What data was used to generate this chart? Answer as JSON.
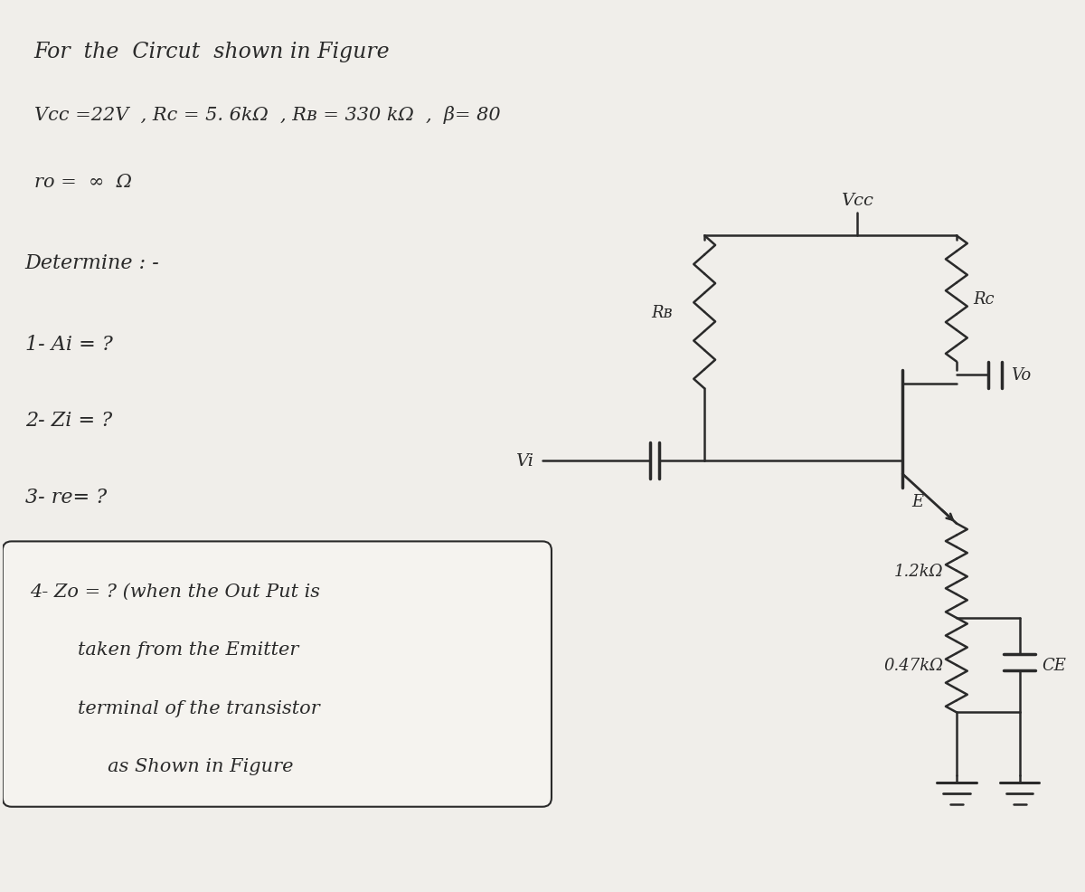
{
  "bg_color": "#f0eeea",
  "paper_color": "#f5f3ef",
  "title_line": "For  the  Circut  shown in Figure",
  "params_line": "Vcc =22V  , Rc = 5. 6kΩ  , Rʙ = 330 kΩ  ,  β= 80",
  "ro_line": "ro =  ∞  Ω",
  "determine_line": "Determine : -",
  "q1": "1- Ai = ?",
  "q2": "2- Zi = ?",
  "q3": "3- re= ?",
  "q4_line1": "4- Zo = ? (when the Out Put is",
  "q4_line2": "        taken from the Emitter",
  "q4_line3": "        terminal of the transistor",
  "q4_line4": "             as Shown in Figure",
  "vcc_label": "Vcc",
  "rb_label": "Rʙ",
  "rc_label": "Rc",
  "re1_label": "1.2kΩ",
  "re2_label": "0.47kΩ",
  "ce_label": "CE",
  "vi_label": "Vi",
  "vo_label": "Vo",
  "e_label": "E",
  "ink_color": "#2a2a2a",
  "title_fs": 17,
  "params_fs": 15,
  "ro_fs": 15,
  "determine_fs": 16,
  "q_fs": 16,
  "q4_fs": 15,
  "circ_fs": 13
}
